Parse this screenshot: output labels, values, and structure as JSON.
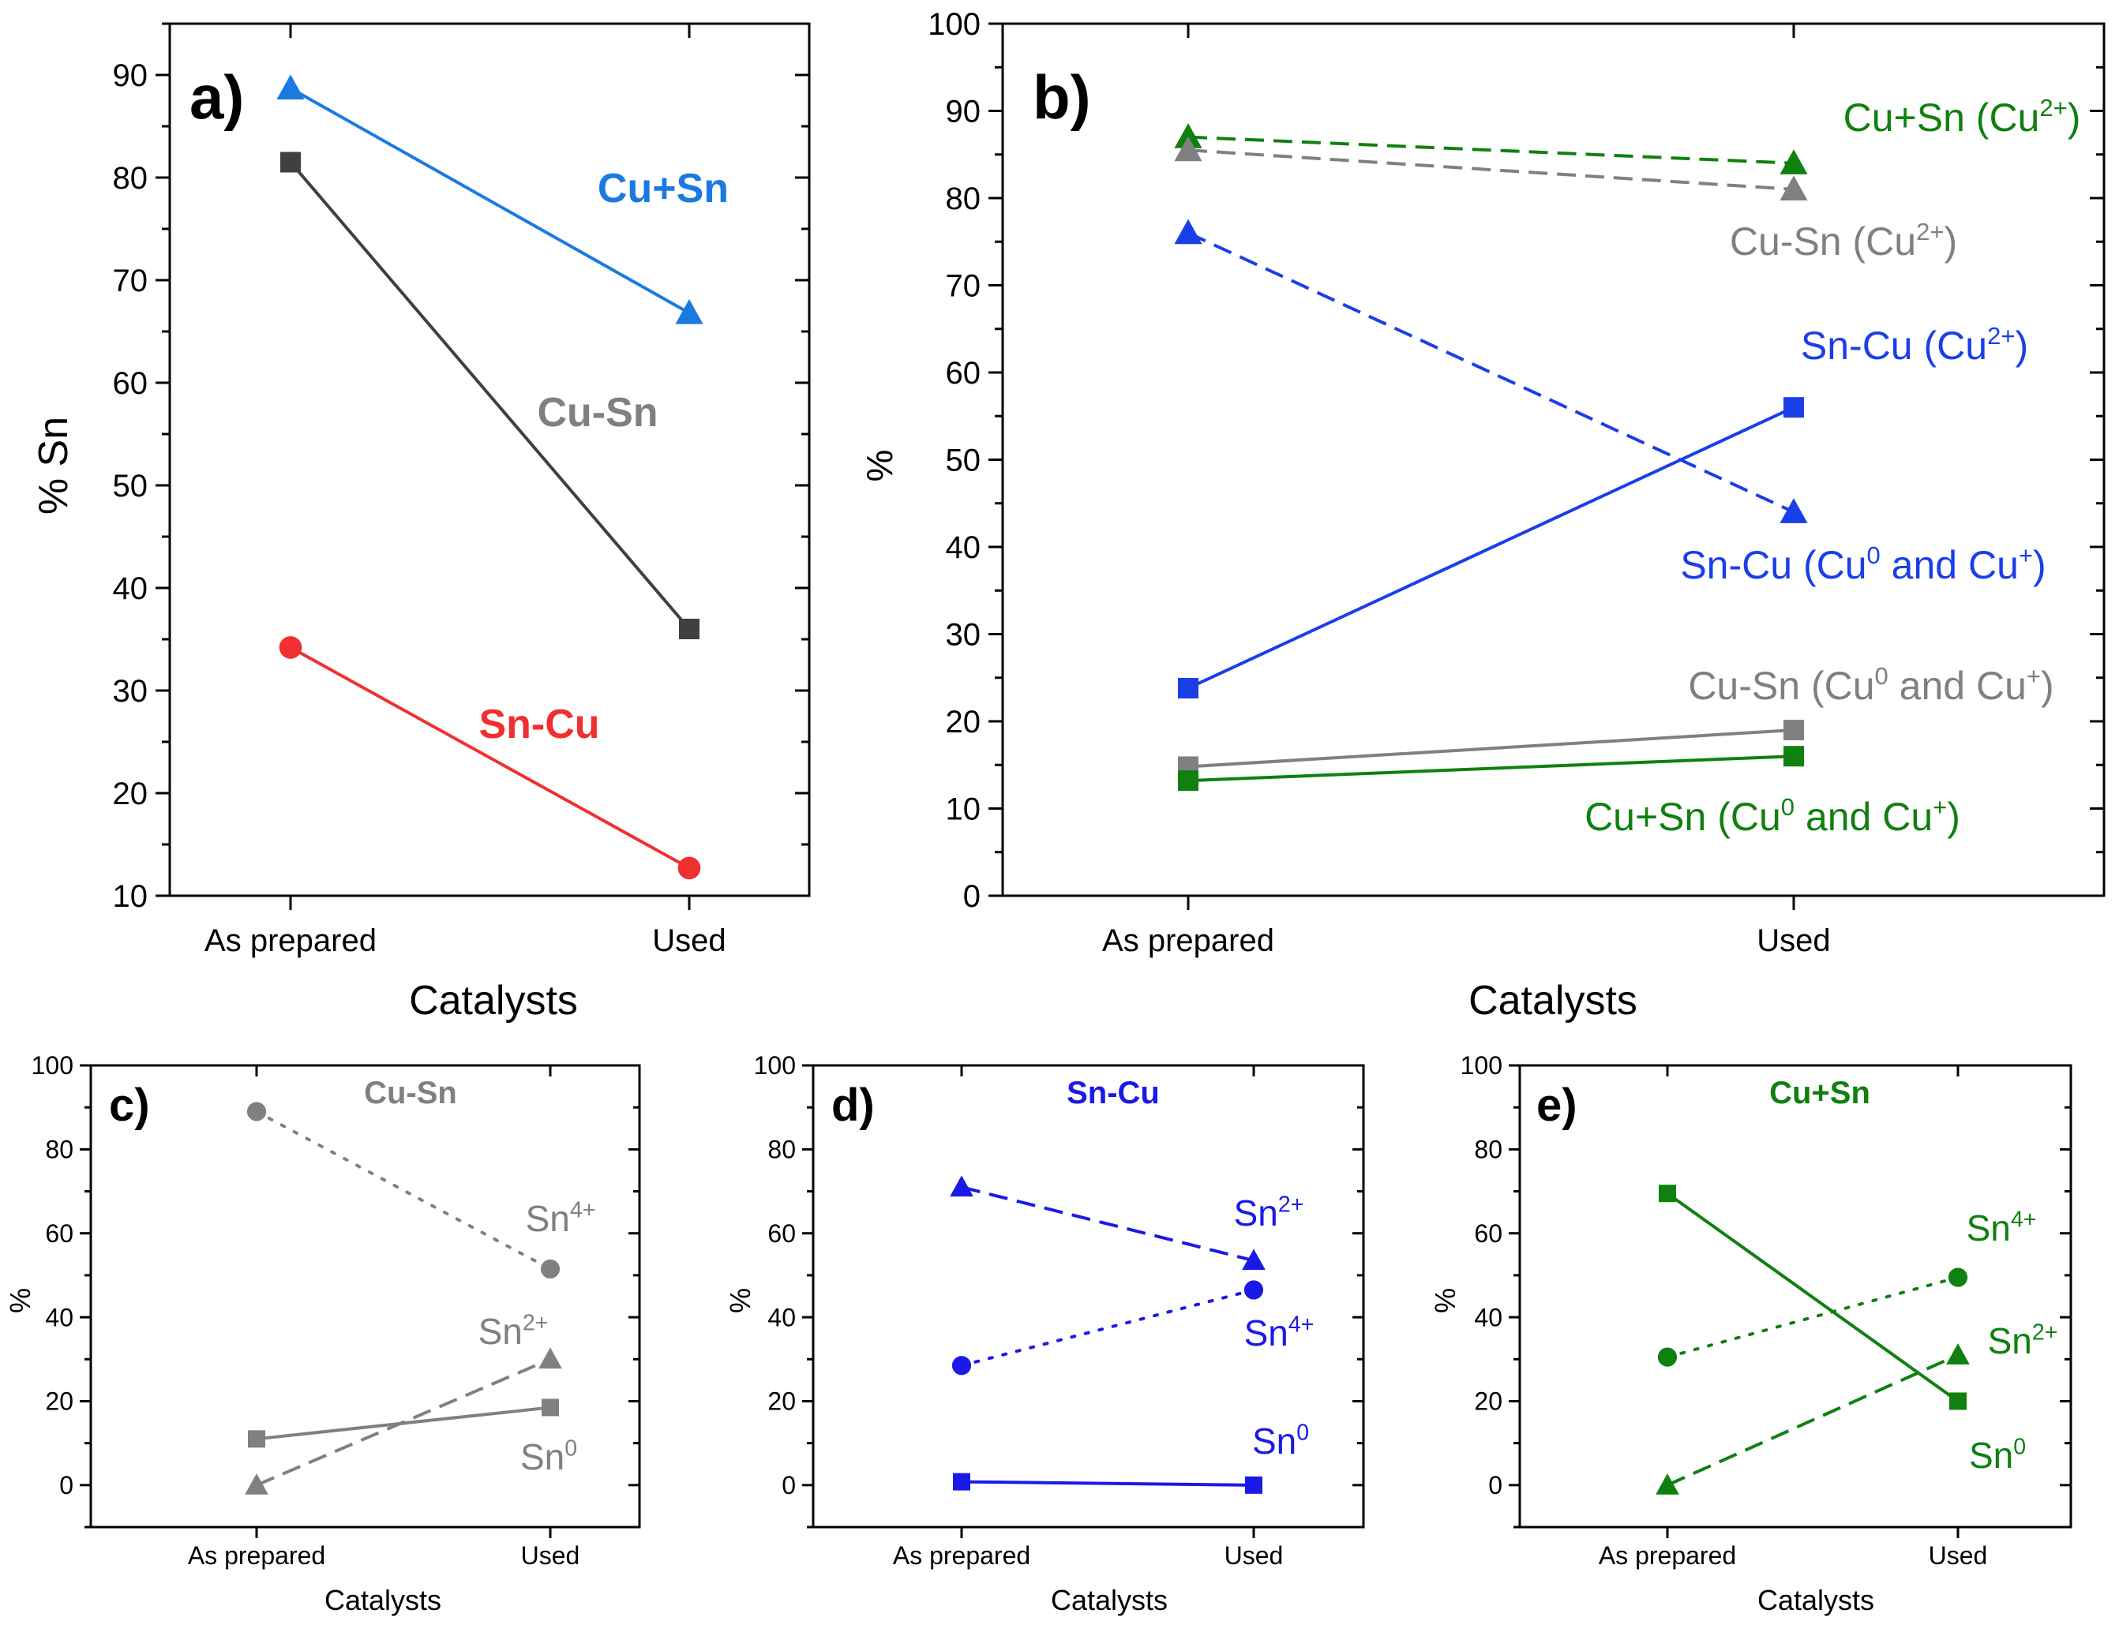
{
  "chart_data": [
    {
      "panel": "a)",
      "type": "line",
      "categories": [
        "As prepared",
        "Used"
      ],
      "xlabel": "Catalysts",
      "ylabel": "% Sn",
      "ylim": [
        10,
        95
      ],
      "yticks": [
        10,
        20,
        30,
        40,
        50,
        60,
        70,
        80,
        90
      ],
      "series": [
        {
          "name": "Cu+Sn",
          "label": "Cu+Sn",
          "values": [
            88.7,
            66.8
          ],
          "color": "#1a7ae0",
          "marker": "triangle",
          "dash": "solid",
          "bold": true
        },
        {
          "name": "Cu-Sn",
          "label": "Cu-Sn",
          "values": [
            81.5,
            36.0
          ],
          "color": "#404040",
          "labelColor": "#808080",
          "marker": "square",
          "dash": "solid",
          "bold": true
        },
        {
          "name": "Sn-Cu",
          "label": "Sn-Cu",
          "values": [
            34.2,
            12.7
          ],
          "color": "#f03030",
          "marker": "circle",
          "dash": "solid",
          "bold": true
        }
      ]
    },
    {
      "panel": "b)",
      "type": "line",
      "categories": [
        "As prepared",
        "Used"
      ],
      "xlabel": "Catalysts",
      "ylabel": "%",
      "ylim": [
        0,
        100
      ],
      "yticks": [
        0,
        10,
        20,
        30,
        40,
        50,
        60,
        70,
        80,
        90,
        100
      ],
      "series": [
        {
          "name": "Cu+Sn (Cu2+)",
          "label": "Cu+Sn (Cu",
          "sup": "2+",
          "tail": ")",
          "values": [
            87.0,
            84.0
          ],
          "color": "#108010",
          "marker": "triangle",
          "dash": "dashed"
        },
        {
          "name": "Cu-Sn (Cu2+)",
          "label": "Cu-Sn (Cu",
          "sup": "2+",
          "tail": ")",
          "values": [
            85.5,
            81.0
          ],
          "color": "#808080",
          "marker": "triangle",
          "dash": "dashed"
        },
        {
          "name": "Sn-Cu (Cu2+)",
          "label": "Sn-Cu (Cu",
          "sup": "2+",
          "tail": ")",
          "values": [
            76.0,
            44.0
          ],
          "color": "#1a3ee8",
          "marker": "triangle",
          "dash": "dashed"
        },
        {
          "name": "Sn-Cu (Cu0 and Cu+)",
          "label": "Sn-Cu (Cu",
          "sup": "0",
          "mid": " and Cu",
          "sup2": "+",
          "tail": ")",
          "values": [
            23.8,
            56.0
          ],
          "color": "#1a3ee8",
          "marker": "square",
          "dash": "solid"
        },
        {
          "name": "Cu-Sn (Cu0 and Cu+)",
          "label": "Cu-Sn (Cu",
          "sup": "0",
          "mid": " and Cu",
          "sup2": "+",
          "tail": ")",
          "values": [
            14.8,
            19.0
          ],
          "color": "#808080",
          "marker": "square",
          "dash": "solid"
        },
        {
          "name": "Cu+Sn (Cu0 and Cu+)",
          "label": "Cu+Sn (Cu",
          "sup": "0",
          "mid": " and Cu",
          "sup2": "+",
          "tail": ")",
          "values": [
            13.2,
            16.0
          ],
          "color": "#108010",
          "marker": "square",
          "dash": "solid"
        }
      ]
    },
    {
      "panel": "c)",
      "type": "line",
      "title": "Cu-Sn",
      "titleColor": "#808080",
      "categories": [
        "As prepared",
        "Used"
      ],
      "xlabel": "Catalysts",
      "ylabel": "%",
      "ylim": [
        -10,
        100
      ],
      "yticks": [
        0,
        20,
        40,
        60,
        80,
        100
      ],
      "series": [
        {
          "name": "Sn4+",
          "label": "Sn",
          "sup": "4+",
          "values": [
            89.0,
            51.5
          ],
          "color": "#808080",
          "marker": "circle",
          "dash": "dotted"
        },
        {
          "name": "Sn2+",
          "label": "Sn",
          "sup": "2+",
          "values": [
            0.0,
            30.0
          ],
          "color": "#808080",
          "marker": "triangle",
          "dash": "dashed"
        },
        {
          "name": "Sn0",
          "label": "Sn",
          "sup": "0",
          "values": [
            11.0,
            18.5
          ],
          "color": "#808080",
          "marker": "square",
          "dash": "solid"
        }
      ]
    },
    {
      "panel": "d)",
      "type": "line",
      "title": "Sn-Cu",
      "titleColor": "#1a1ae8",
      "categories": [
        "As prepared",
        "Used"
      ],
      "xlabel": "Catalysts",
      "ylabel": "%",
      "ylim": [
        -10,
        100
      ],
      "yticks": [
        0,
        20,
        40,
        60,
        80,
        100
      ],
      "series": [
        {
          "name": "Sn2+",
          "label": "Sn",
          "sup": "2+",
          "values": [
            71.0,
            53.5
          ],
          "color": "#1a1ae8",
          "marker": "triangle",
          "dash": "dashed"
        },
        {
          "name": "Sn4+",
          "label": "Sn",
          "sup": "4+",
          "values": [
            28.5,
            46.5
          ],
          "color": "#1a1ae8",
          "marker": "circle",
          "dash": "dotted"
        },
        {
          "name": "Sn0",
          "label": "Sn",
          "sup": "0",
          "values": [
            0.8,
            0.0
          ],
          "color": "#1a1ae8",
          "marker": "square",
          "dash": "solid"
        }
      ]
    },
    {
      "panel": "e)",
      "type": "line",
      "title": "Cu+Sn",
      "titleColor": "#108010",
      "categories": [
        "As prepared",
        "Used"
      ],
      "xlabel": "Catalysts",
      "ylabel": "%",
      "ylim": [
        -10,
        100
      ],
      "yticks": [
        0,
        20,
        40,
        60,
        80,
        100
      ],
      "series": [
        {
          "name": "Sn0",
          "label": "Sn",
          "sup": "0",
          "values": [
            69.5,
            20.0
          ],
          "color": "#108010",
          "marker": "square",
          "dash": "solid"
        },
        {
          "name": "Sn4+",
          "label": "Sn",
          "sup": "4+",
          "values": [
            30.5,
            49.5
          ],
          "color": "#108010",
          "marker": "circle",
          "dash": "dotted"
        },
        {
          "name": "Sn2+",
          "label": "Sn",
          "sup": "2+",
          "values": [
            0.0,
            31.0
          ],
          "color": "#108010",
          "marker": "triangle",
          "dash": "dashed"
        }
      ]
    }
  ]
}
